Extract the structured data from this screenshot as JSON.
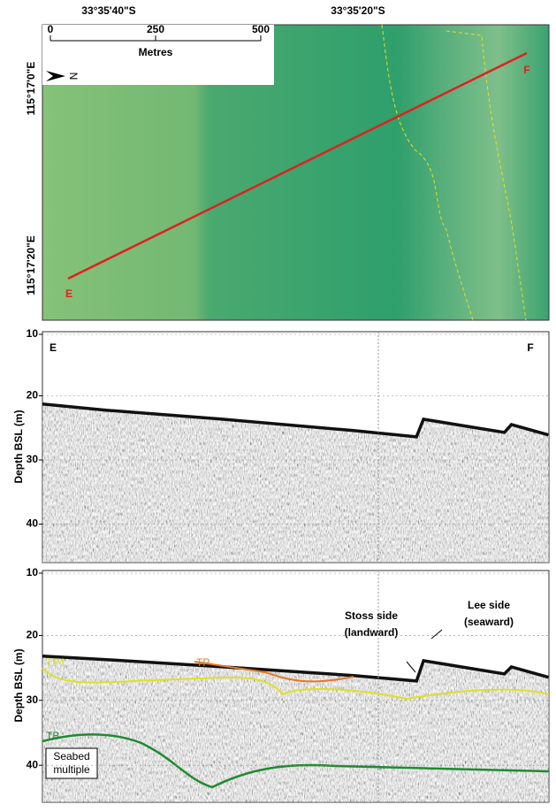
{
  "map": {
    "top_labels": [
      "33°35'40\"S",
      "33°35'20\"S"
    ],
    "left_labels": [
      "115°17'0\"E",
      "115°17'20\"E"
    ],
    "scale_bar": {
      "ticks": [
        0,
        250,
        500
      ],
      "unit": "Metres"
    },
    "north": "N",
    "start": "E",
    "end": "F"
  },
  "profiles": [
    {
      "start": "E",
      "end": "F",
      "axis_label": "Depth BSL (m)",
      "yticks": [
        10,
        20,
        30,
        40
      ],
      "ylim": [
        10,
        46
      ]
    },
    {
      "axis_label": "Depth BSL (m)",
      "yticks": [
        10,
        20,
        30,
        40
      ],
      "ylim": [
        10,
        45.7
      ],
      "stoss": [
        "Stoss side",
        "(landward)"
      ],
      "lee": [
        "Lee side",
        "(seaward)"
      ],
      "tp1": "TP1",
      "tp": "TP",
      "tb": "TB",
      "multiple": [
        "Seabed",
        "multiple"
      ]
    }
  ]
}
